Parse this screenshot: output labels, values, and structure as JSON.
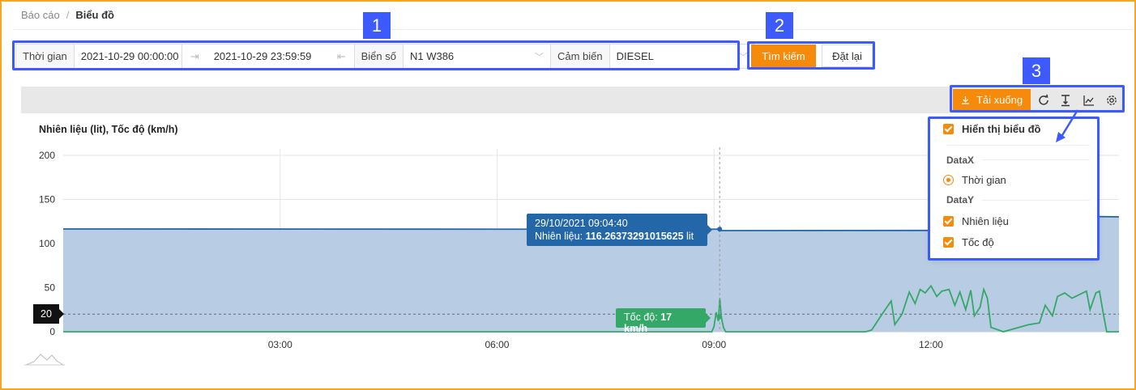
{
  "breadcrumb": {
    "parent": "Báo cáo",
    "separator": "/",
    "current": "Biểu đồ"
  },
  "annotations": {
    "badge1": "1",
    "badge2": "2",
    "badge3": "3",
    "color": "#3d5afe"
  },
  "filter": {
    "time_label": "Thời gian",
    "time_start": "2021-10-29 00:00:00",
    "time_end": "2021-10-29 23:59:59",
    "plate_label": "Biển số",
    "plate_value": "N1 W386",
    "sensor_label": "Cảm biến",
    "sensor_value": "DIESEL"
  },
  "actions": {
    "search_label": "Tìm kiếm",
    "reset_label": "Đặt lại",
    "accent": "#f58a0b"
  },
  "toolbar": {
    "download_label": "Tải xuống",
    "icons": [
      "download-icon",
      "refresh-icon",
      "text-height-icon",
      "line-chart-icon",
      "gear-icon"
    ]
  },
  "settings_menu": {
    "show_chart_label": "Hiển thị biểu đồ",
    "datax_heading": "DataX",
    "datax_option": "Thời gian",
    "datay_heading": "DataY",
    "datay_options": [
      "Nhiên liệu",
      "Tốc độ"
    ]
  },
  "tooltips": {
    "fuel_time": "29/10/2021 09:04:40",
    "fuel_prefix": "Nhiên liệu:",
    "fuel_value": "116.26373291015625",
    "fuel_unit": "lit",
    "speed_prefix": "Tốc độ:",
    "speed_value": "17 km/h",
    "reference_value": "20"
  },
  "chart_data": {
    "type": "area",
    "title": "Nhiên liệu (lit), Tốc độ (km/h)",
    "x_tick_labels": [
      "03:00",
      "06:00",
      "09:00",
      "12:00"
    ],
    "x_tick_hours": [
      3,
      6,
      9,
      12
    ],
    "x_range_hours": [
      0,
      14.6
    ],
    "y_ticks": [
      0,
      50,
      100,
      150,
      200
    ],
    "ylim": [
      0,
      200
    ],
    "grid": true,
    "reference_line": 20,
    "cursor_hour": 9.078,
    "series": [
      {
        "name": "Nhiên liệu",
        "type": "area",
        "color": "#2367a8",
        "fill": "#b8cde4",
        "points": [
          [
            0,
            116.5
          ],
          [
            6,
            116.3
          ],
          [
            9.07,
            116.3
          ],
          [
            9.1,
            114.7
          ],
          [
            12.5,
            114.9
          ],
          [
            13.5,
            115.6
          ],
          [
            14.1,
            130.8
          ],
          [
            14.6,
            130.3
          ]
        ]
      },
      {
        "name": "Tốc độ",
        "type": "line",
        "color": "#33a867",
        "points": [
          [
            0,
            0
          ],
          [
            8.97,
            0
          ],
          [
            9.0,
            6
          ],
          [
            9.03,
            22
          ],
          [
            9.06,
            12
          ],
          [
            9.08,
            38
          ],
          [
            9.1,
            17
          ],
          [
            9.13,
            5
          ],
          [
            9.16,
            0
          ],
          [
            11.1,
            0
          ],
          [
            11.18,
            2
          ],
          [
            11.3,
            17
          ],
          [
            11.45,
            35
          ],
          [
            11.5,
            8
          ],
          [
            11.6,
            20
          ],
          [
            11.7,
            45
          ],
          [
            11.78,
            32
          ],
          [
            11.85,
            48
          ],
          [
            11.92,
            44
          ],
          [
            12.0,
            52
          ],
          [
            12.08,
            40
          ],
          [
            12.15,
            46
          ],
          [
            12.25,
            48
          ],
          [
            12.33,
            30
          ],
          [
            12.4,
            45
          ],
          [
            12.48,
            25
          ],
          [
            12.55,
            47
          ],
          [
            12.6,
            18
          ],
          [
            12.68,
            28
          ],
          [
            12.73,
            48
          ],
          [
            12.78,
            38
          ],
          [
            12.83,
            5
          ],
          [
            12.9,
            3
          ],
          [
            13.0,
            0
          ],
          [
            13.35,
            8
          ],
          [
            13.5,
            10
          ],
          [
            13.58,
            30
          ],
          [
            13.68,
            18
          ],
          [
            13.75,
            40
          ],
          [
            13.85,
            44
          ],
          [
            13.95,
            38
          ],
          [
            14.05,
            42
          ],
          [
            14.15,
            46
          ],
          [
            14.2,
            25
          ],
          [
            14.28,
            44
          ],
          [
            14.33,
            46
          ],
          [
            14.38,
            22
          ],
          [
            14.43,
            0
          ],
          [
            14.6,
            0
          ]
        ]
      }
    ]
  }
}
